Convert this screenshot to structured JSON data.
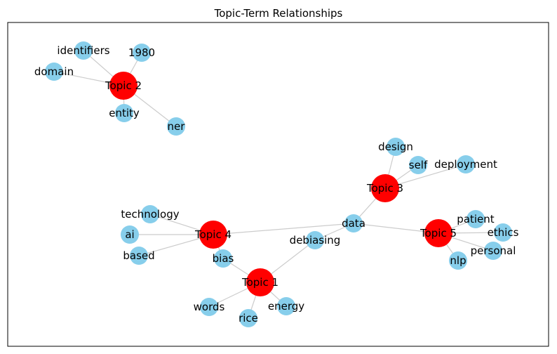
{
  "title": "Topic-Term Relationships",
  "colors": {
    "topic": "#ff0000",
    "term": "#87ceeb",
    "edge": "#cccccc",
    "frame": "#000000"
  },
  "nodes": [
    {
      "id": "topic1",
      "label": "Topic 1",
      "kind": "topic"
    },
    {
      "id": "topic2",
      "label": "Topic 2",
      "kind": "topic"
    },
    {
      "id": "topic3",
      "label": "Topic 3",
      "kind": "topic"
    },
    {
      "id": "topic4",
      "label": "Topic 4",
      "kind": "topic"
    },
    {
      "id": "topic5",
      "label": "Topic 5",
      "kind": "topic"
    },
    {
      "id": "identifiers",
      "label": "identifiers",
      "kind": "term"
    },
    {
      "id": "1980",
      "label": "1980",
      "kind": "term"
    },
    {
      "id": "domain",
      "label": "domain",
      "kind": "term"
    },
    {
      "id": "entity",
      "label": "entity",
      "kind": "term"
    },
    {
      "id": "ner",
      "label": "ner",
      "kind": "term"
    },
    {
      "id": "design",
      "label": "design",
      "kind": "term"
    },
    {
      "id": "self",
      "label": "self",
      "kind": "term"
    },
    {
      "id": "deployment",
      "label": "deployment",
      "kind": "term"
    },
    {
      "id": "data",
      "label": "data",
      "kind": "term"
    },
    {
      "id": "debiasing",
      "label": "debiasing",
      "kind": "term"
    },
    {
      "id": "technology",
      "label": "technology",
      "kind": "term"
    },
    {
      "id": "ai",
      "label": "ai",
      "kind": "term"
    },
    {
      "id": "based",
      "label": "based",
      "kind": "term"
    },
    {
      "id": "bias",
      "label": "bias",
      "kind": "term"
    },
    {
      "id": "words",
      "label": "words",
      "kind": "term"
    },
    {
      "id": "rice",
      "label": "rice",
      "kind": "term"
    },
    {
      "id": "energy",
      "label": "energy",
      "kind": "term"
    },
    {
      "id": "patient",
      "label": "patient",
      "kind": "term"
    },
    {
      "id": "ethics",
      "label": "ethics",
      "kind": "term"
    },
    {
      "id": "personal",
      "label": "personal",
      "kind": "term"
    },
    {
      "id": "nlp",
      "label": "nlp",
      "kind": "term"
    }
  ],
  "edges": [
    [
      "topic2",
      "identifiers"
    ],
    [
      "topic2",
      "1980"
    ],
    [
      "topic2",
      "domain"
    ],
    [
      "topic2",
      "entity"
    ],
    [
      "topic2",
      "ner"
    ],
    [
      "topic3",
      "design"
    ],
    [
      "topic3",
      "self"
    ],
    [
      "topic3",
      "deployment"
    ],
    [
      "topic3",
      "data"
    ],
    [
      "topic4",
      "technology"
    ],
    [
      "topic4",
      "ai"
    ],
    [
      "topic4",
      "based"
    ],
    [
      "topic4",
      "bias"
    ],
    [
      "topic4",
      "data"
    ],
    [
      "topic1",
      "bias"
    ],
    [
      "topic1",
      "words"
    ],
    [
      "topic1",
      "rice"
    ],
    [
      "topic1",
      "energy"
    ],
    [
      "topic1",
      "debiasing"
    ],
    [
      "data",
      "debiasing"
    ],
    [
      "data",
      "topic5"
    ],
    [
      "topic5",
      "patient"
    ],
    [
      "topic5",
      "ethics"
    ],
    [
      "topic5",
      "personal"
    ],
    [
      "topic5",
      "nlp"
    ]
  ]
}
